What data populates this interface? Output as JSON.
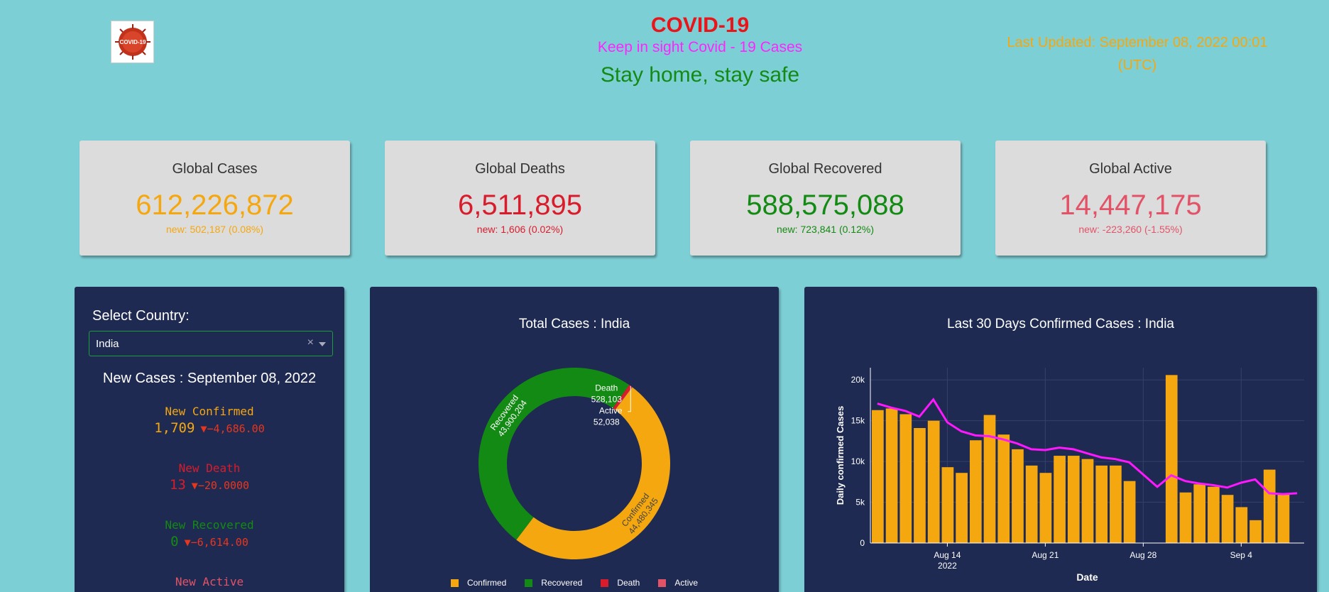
{
  "header": {
    "logo_text": "COVID-19",
    "title": "COVID-19",
    "subtitle": "Keep in sight Covid - 19 Cases",
    "tagline": "Stay home, stay safe",
    "last_updated": "Last Updated: September 08, 2022 00:01 (UTC)"
  },
  "colors": {
    "cases": "#f5a70f",
    "deaths": "#d91c2c",
    "recovered": "#138a13",
    "active": "#e25368",
    "panel": "#1f2a52",
    "background": "#7dcfd6"
  },
  "cards": {
    "cases": {
      "label": "Global Cases",
      "value": "612,226,872",
      "new": "new: 502,187 (0.08%)"
    },
    "deaths": {
      "label": "Global Deaths",
      "value": "6,511,895",
      "new": "new: 1,606 (0.02%)"
    },
    "recovered": {
      "label": "Global Recovered",
      "value": "588,575,088",
      "new": "new: 723,841 (0.12%)"
    },
    "active": {
      "label": "Global Active",
      "value": "14,447,175",
      "new": "new: -223,260 (-1.55%)"
    }
  },
  "selector": {
    "label": "Select Country:",
    "value": "India",
    "clear_icon": "×"
  },
  "new_cases": {
    "title": "New Cases : September 08, 2022",
    "confirmed": {
      "label": "New Confirmed",
      "value": "1,709",
      "delta": "▼−4,686.00"
    },
    "death": {
      "label": "New Death",
      "value": "13",
      "delta": "▼−20.0000"
    },
    "recovered": {
      "label": "New Recovered",
      "value": "0",
      "delta": "▼−6,614.00"
    },
    "active": {
      "label": "New Active"
    }
  },
  "chart_data": [
    {
      "type": "pie",
      "title": "Total Cases : India",
      "hole": true,
      "labels": [
        "Confirmed",
        "Recovered",
        "Death",
        "Active"
      ],
      "values": [
        44480345,
        43900204,
        528103,
        52038
      ],
      "value_labels": [
        "44,480,345",
        "43,900,204",
        "528,103",
        "52,038"
      ],
      "colors": [
        "#f5a70f",
        "#138a13",
        "#d91c2c",
        "#e25368"
      ],
      "legend": [
        "Confirmed",
        "Recovered",
        "Death",
        "Active"
      ],
      "legend_position": "bottom"
    },
    {
      "type": "bar",
      "title": "Last 30 Days Confirmed Cases : India",
      "xlabel": "Date",
      "ylabel": "Daily confirmed Cases",
      "ylim": [
        0,
        21500
      ],
      "yticks": [
        0,
        5000,
        10000,
        15000,
        20000
      ],
      "ytick_labels": [
        "0",
        "5k",
        "10k",
        "15k",
        "20k"
      ],
      "xtick_labels": [
        {
          "day": 5,
          "label": "Aug 14",
          "sub": "2022"
        },
        {
          "day": 12,
          "label": "Aug 21",
          "sub": ""
        },
        {
          "day": 19,
          "label": "Aug 28",
          "sub": ""
        },
        {
          "day": 26,
          "label": "Sep 4",
          "sub": ""
        }
      ],
      "x": [
        "Aug 9",
        "Aug 10",
        "Aug 11",
        "Aug 12",
        "Aug 13",
        "Aug 14",
        "Aug 15",
        "Aug 16",
        "Aug 17",
        "Aug 18",
        "Aug 19",
        "Aug 20",
        "Aug 21",
        "Aug 22",
        "Aug 23",
        "Aug 24",
        "Aug 25",
        "Aug 26",
        "Aug 27",
        "Aug 28",
        "Aug 29",
        "Aug 30",
        "Aug 31",
        "Sep 1",
        "Sep 2",
        "Sep 3",
        "Sep 4",
        "Sep 5",
        "Sep 6",
        "Sep 7",
        "Sep 8"
      ],
      "values": [
        16300,
        16500,
        15800,
        14100,
        15000,
        9300,
        8600,
        12600,
        15700,
        13300,
        11500,
        9500,
        8600,
        10700,
        10700,
        10300,
        9500,
        9500,
        7600,
        0,
        0,
        20600,
        6200,
        7200,
        6900,
        5900,
        4400,
        2800,
        9000,
        6100,
        0
      ],
      "line": {
        "name": "7-day average",
        "color": "#ff18ff",
        "values": [
          17100,
          16600,
          16200,
          15500,
          17600,
          14800,
          13700,
          13200,
          13100,
          12700,
          12200,
          11500,
          11400,
          11700,
          11500,
          11000,
          10500,
          10300,
          9900,
          8400,
          6900,
          8300,
          7600,
          7300,
          7100,
          6800,
          7400,
          7800,
          6100,
          6000,
          6100
        ]
      },
      "bar_color": "#f5a70f"
    }
  ]
}
